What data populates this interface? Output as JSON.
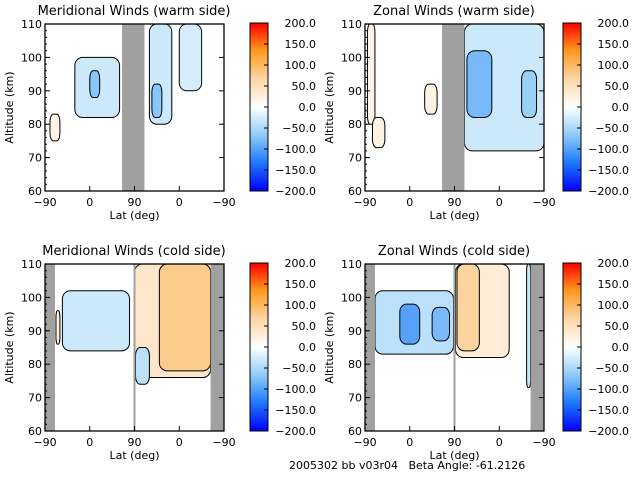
{
  "footer": "2005302 bb v03r04   Beta Angle: -61.2126",
  "colorbar": {
    "ticks": [
      "200.0",
      "150.0",
      "100.0",
      "50.0",
      "0.0",
      "-50.0",
      "-100.0",
      "-150.0",
      "-200.0"
    ],
    "range": [
      -200,
      200
    ],
    "colors": [
      "#0000ff",
      "#1e78ff",
      "#8ecbf7",
      "#ffffff",
      "#fbd6a6",
      "#ff9a1e",
      "#ff0000"
    ]
  },
  "chart_data": [
    {
      "type": "heatmap",
      "title": "Meridional Winds (warm side)",
      "xlabel": "Lat (deg)",
      "ylabel": "Altitude (km)",
      "xticks": [
        "-90",
        "0",
        "90",
        "0",
        "-90"
      ],
      "yticks": [
        "60",
        "70",
        "80",
        "90",
        "100",
        "110"
      ],
      "ylim": [
        60,
        110
      ],
      "colorbar_range": [
        -200,
        200
      ],
      "gaps": [
        [
          65,
          110
        ]
      ],
      "regions": [
        {
          "x": [
            -30,
            60
          ],
          "y": [
            82,
            100
          ],
          "value": -30
        },
        {
          "x": [
            0,
            20
          ],
          "y": [
            88,
            96
          ],
          "value": -70
        },
        {
          "x": [
            120,
            165
          ],
          "y": [
            80,
            110
          ],
          "value": -30
        },
        {
          "x": [
            125,
            145
          ],
          "y": [
            82,
            92
          ],
          "value": -70
        },
        {
          "x": [
            -80,
            -60
          ],
          "y": [
            75,
            83
          ],
          "value": 20
        },
        {
          "x": [
            180,
            225
          ],
          "y": [
            90,
            110
          ],
          "value": -25
        }
      ]
    },
    {
      "type": "heatmap",
      "title": "Zonal Winds (warm side)",
      "xlabel": "Lat (deg)",
      "ylabel": "Altitude (km)",
      "xticks": [
        "-90",
        "0",
        "90",
        "0",
        "-90"
      ],
      "yticks": [
        "60",
        "70",
        "80",
        "90",
        "100",
        "110"
      ],
      "ylim": [
        60,
        110
      ],
      "colorbar_range": [
        -200,
        200
      ],
      "gaps": [
        [
          65,
          110
        ]
      ],
      "regions": [
        {
          "x": [
            110,
            270
          ],
          "y": [
            72,
            110
          ],
          "value": -30
        },
        {
          "x": [
            115,
            165
          ],
          "y": [
            82,
            102
          ],
          "value": -80
        },
        {
          "x": [
            225,
            255
          ],
          "y": [
            82,
            96
          ],
          "value": -60
        },
        {
          "x": [
            -85,
            -70
          ],
          "y": [
            80,
            110
          ],
          "value": 20
        },
        {
          "x": [
            -75,
            -50
          ],
          "y": [
            73,
            82
          ],
          "value": 20
        },
        {
          "x": [
            30,
            55
          ],
          "y": [
            83,
            92
          ],
          "value": 20
        }
      ]
    },
    {
      "type": "heatmap",
      "title": "Meridional Winds (cold side)",
      "xlabel": "Lat (deg)",
      "ylabel": "Altitude (km)",
      "xticks": [
        "-90",
        "0",
        "90",
        "0",
        "-90"
      ],
      "yticks": [
        "60",
        "70",
        "80",
        "90",
        "100",
        "110"
      ],
      "ylim": [
        60,
        110
      ],
      "colorbar_range": [
        -200,
        200
      ],
      "gaps": [
        [
          -90,
          -70
        ],
        [
          88,
          92
        ],
        [
          243,
          270
        ]
      ],
      "regions": [
        {
          "x": [
            -55,
            80
          ],
          "y": [
            84,
            102
          ],
          "value": -30
        },
        {
          "x": [
            90,
            243
          ],
          "y": [
            76,
            110
          ],
          "value": 40
        },
        {
          "x": [
            140,
            243
          ],
          "y": [
            78,
            110
          ],
          "value": 80
        },
        {
          "x": [
            92,
            120
          ],
          "y": [
            74,
            85
          ],
          "value": -40
        },
        {
          "x": [
            -68,
            -60
          ],
          "y": [
            86,
            96
          ],
          "value": 25
        }
      ]
    },
    {
      "type": "heatmap",
      "title": "Zonal Winds (cold side)",
      "xlabel": "Lat (deg)",
      "ylabel": "Altitude (km)",
      "xticks": [
        "-90",
        "0",
        "90",
        "0",
        "-90"
      ],
      "yticks": [
        "60",
        "70",
        "80",
        "90",
        "100",
        "110"
      ],
      "ylim": [
        60,
        110
      ],
      "colorbar_range": [
        -200,
        200
      ],
      "gaps": [
        [
          -90,
          -70
        ],
        [
          88,
          92
        ],
        [
          243,
          270
        ]
      ],
      "regions": [
        {
          "x": [
            -70,
            88
          ],
          "y": [
            83,
            102
          ],
          "value": -40
        },
        {
          "x": [
            -20,
            20
          ],
          "y": [
            86,
            98
          ],
          "value": -100
        },
        {
          "x": [
            45,
            80
          ],
          "y": [
            87,
            97
          ],
          "value": -80
        },
        {
          "x": [
            92,
            200
          ],
          "y": [
            82,
            110
          ],
          "value": 30
        },
        {
          "x": [
            95,
            140
          ],
          "y": [
            84,
            110
          ],
          "value": 70
        },
        {
          "x": [
            235,
            243
          ],
          "y": [
            73,
            110
          ],
          "value": -30
        }
      ]
    }
  ]
}
